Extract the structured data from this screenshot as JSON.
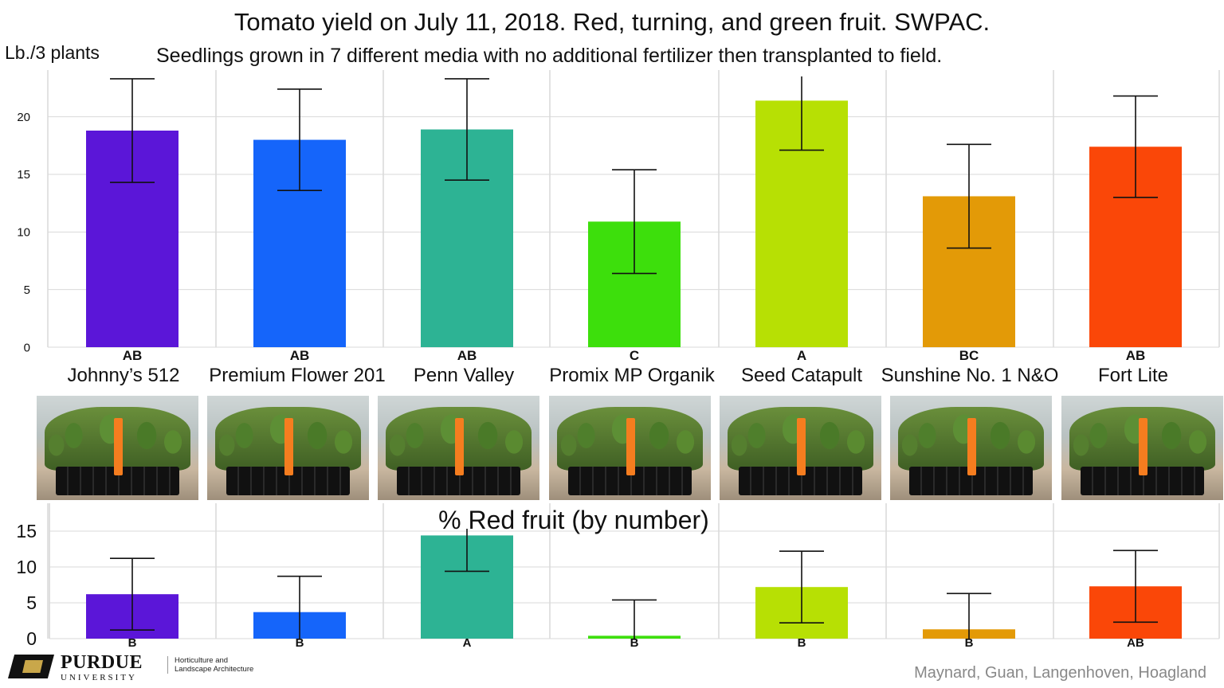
{
  "title": "Tomato yield on July 11, 2018. Red, turning, and green fruit. SWPAC.",
  "subtitle": "Seedlings grown in 7 different media with no additional fertilizer then transplanted to field.",
  "media_labels": [
    "Johnny’s 512",
    "Premium Flower 201",
    "Penn Valley",
    "Promix MP Organik",
    "Seed Catapult",
    "Sunshine No. 1 N&O",
    "Fort Lite"
  ],
  "colors": {
    "series": [
      "#5b16d8",
      "#1565fa",
      "#2db394",
      "#3ddf0c",
      "#b7e004",
      "#e39a07",
      "#fa4708"
    ],
    "error_bar": "#111111",
    "grid": "#d9d9d9",
    "photo_tag": "#f57d1f"
  },
  "chart_data": [
    {
      "type": "bar",
      "title": "",
      "ylabel": "Lb./3 plants",
      "xlabel": "",
      "ylim": [
        0,
        23.5
      ],
      "yticks": [
        "0",
        "5",
        "10",
        "15",
        "20"
      ],
      "grid": true,
      "categories": [
        "AB",
        "AB",
        "AB",
        "C",
        "A",
        "BC",
        "AB"
      ],
      "values": [
        18.8,
        18.0,
        18.9,
        10.9,
        21.4,
        13.1,
        17.4
      ],
      "error": [
        4.5,
        4.4,
        4.4,
        4.5,
        4.3,
        4.5,
        4.4
      ]
    },
    {
      "type": "bar",
      "title": "% Red fruit (by number)",
      "ylabel": "",
      "xlabel": "",
      "ylim": [
        0,
        18
      ],
      "yticks": [
        "0",
        "5",
        "10",
        "15"
      ],
      "grid": true,
      "categories": [
        "B",
        "B",
        "A",
        "B",
        "B",
        "B",
        "AB"
      ],
      "values": [
        6.2,
        3.7,
        14.4,
        0.4,
        7.2,
        1.3,
        7.3
      ],
      "error": [
        5.0,
        5.0,
        5.0,
        5.0,
        5.0,
        5.0,
        5.0
      ]
    }
  ],
  "logo": {
    "name": "PURDUE",
    "sub": "UNIVERSITY",
    "dept": "Horticulture and\nLandscape Architecture"
  },
  "credit": "Maynard, Guan, Langenhoven, Hoagland"
}
